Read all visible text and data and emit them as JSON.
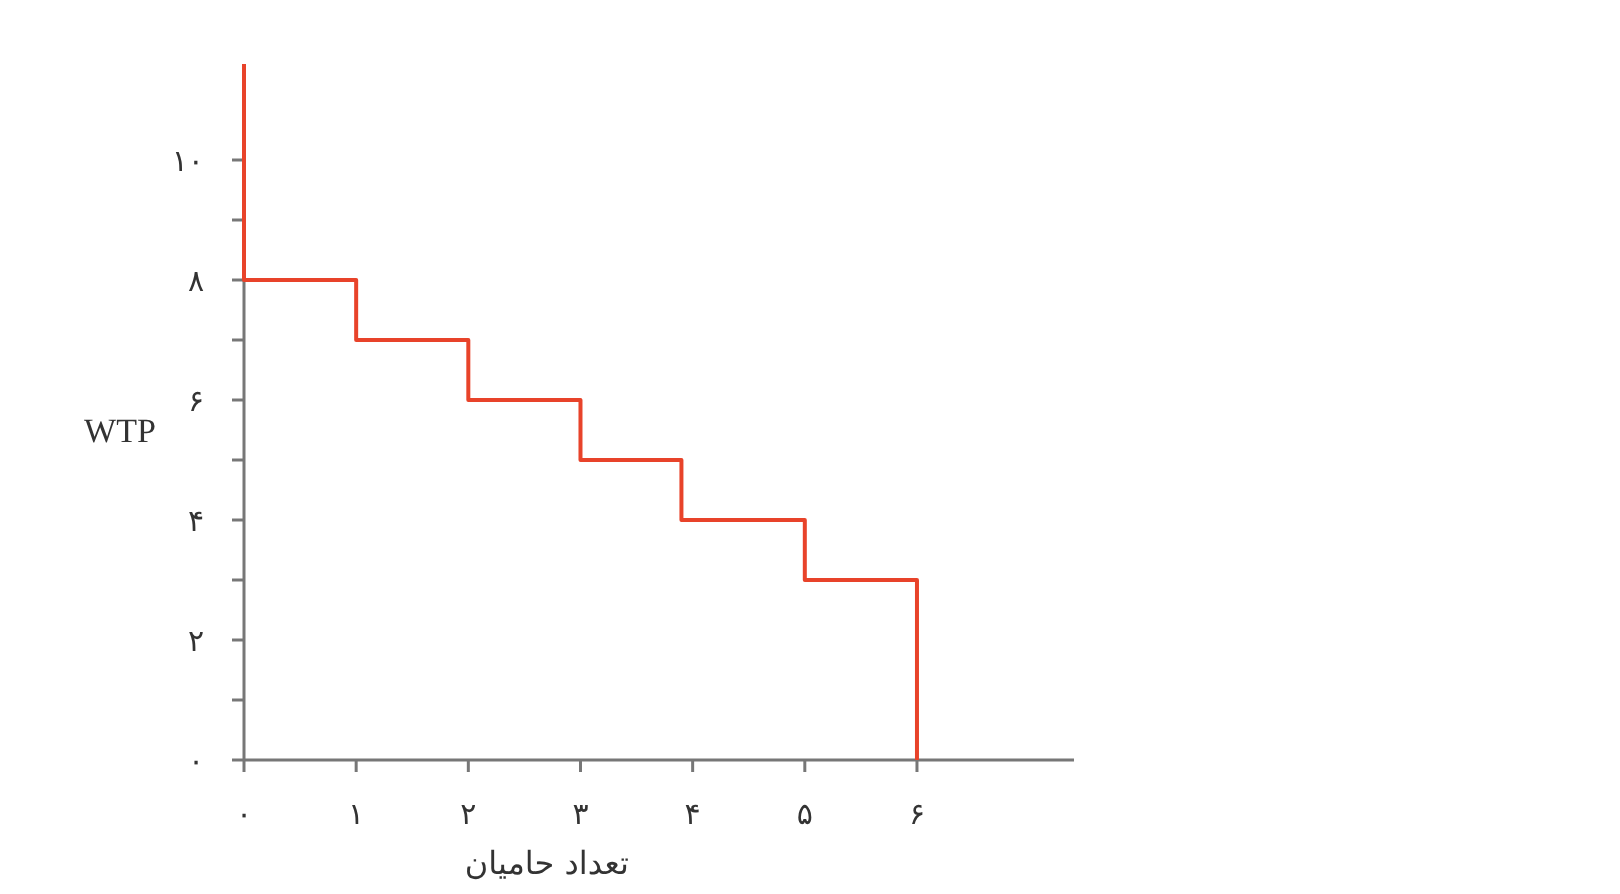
{
  "chart_data": {
    "type": "line",
    "xlabel": "تعداد حامیان",
    "ylabel": "WTP",
    "x": [
      0,
      0,
      1,
      1,
      2,
      2,
      3,
      3,
      3.9,
      3.9,
      5,
      5,
      6,
      6
    ],
    "series": [
      {
        "color": "#e8432a",
        "values": [
          11.6,
          8,
          8,
          7,
          7,
          6,
          6,
          5,
          5,
          4,
          4,
          3,
          3,
          0
        ]
      }
    ],
    "xlim": [
      0,
      7.4
    ],
    "ylim": [
      0,
      11.6
    ],
    "xticks": [
      {
        "value": 0,
        "label": "۰"
      },
      {
        "value": 1,
        "label": "۱"
      },
      {
        "value": 2,
        "label": "۲"
      },
      {
        "value": 3,
        "label": "۳"
      },
      {
        "value": 4,
        "label": "۴"
      },
      {
        "value": 5,
        "label": "۵"
      },
      {
        "value": 6,
        "label": "۶"
      }
    ],
    "yticks": [
      {
        "value": 0,
        "label": "۰"
      },
      {
        "value": 1,
        "label": null
      },
      {
        "value": 2,
        "label": "۲"
      },
      {
        "value": 3,
        "label": null
      },
      {
        "value": 4,
        "label": "۴"
      },
      {
        "value": 5,
        "label": null
      },
      {
        "value": 6,
        "label": "۶"
      },
      {
        "value": 7,
        "label": null
      },
      {
        "value": 8,
        "label": "۸"
      },
      {
        "value": 9,
        "label": null
      },
      {
        "value": 10,
        "label": "۱۰"
      }
    ],
    "grid": false,
    "marker": "none",
    "line_style": "solid"
  }
}
